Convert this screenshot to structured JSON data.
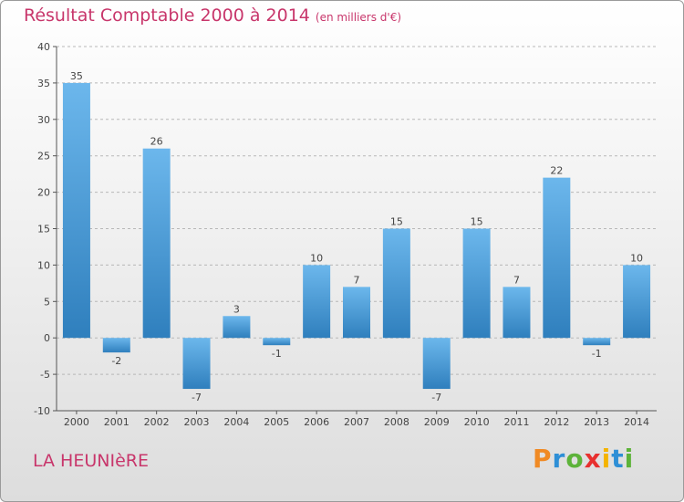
{
  "header": {
    "title": "Résultat Comptable 2000 à 2014",
    "subtitle": "(en milliers d'€)"
  },
  "footer": {
    "commune": "LA HEUNIèRE",
    "logo": {
      "letters": [
        "P",
        "r",
        "o",
        "x",
        "i",
        "t",
        "i"
      ],
      "colors": [
        "#f08a24",
        "#2e8fd6",
        "#5db33a",
        "#e8302f",
        "#f4b400",
        "#2e8fd6",
        "#5db33a"
      ]
    }
  },
  "colors": {
    "bar_top": "#6cb7ec",
    "bar_bottom": "#2f7fbd",
    "title": "#c8366b",
    "axis": "#555555",
    "grid": "#b8b8b8"
  },
  "chart_data": {
    "type": "bar",
    "categories": [
      "2000",
      "2001",
      "2002",
      "2003",
      "2004",
      "2005",
      "2006",
      "2007",
      "2008",
      "2009",
      "2010",
      "2011",
      "2012",
      "2013",
      "2014"
    ],
    "values": [
      35,
      -2,
      26,
      -7,
      3,
      -1,
      10,
      7,
      15,
      -7,
      15,
      7,
      22,
      -1,
      10
    ],
    "data_labels": [
      "35",
      "-2",
      "26",
      "-7",
      "3",
      "-1",
      "10",
      "7",
      "15",
      "-7",
      "15",
      "7",
      "22",
      "-1",
      "10"
    ],
    "yticks": [
      40,
      35,
      30,
      25,
      20,
      15,
      10,
      5,
      0,
      -5,
      -10
    ],
    "ylim": [
      -10,
      40
    ],
    "title": "Résultat Comptable 2000 à 2014",
    "subtitle": "(en milliers d'€)",
    "xlabel": "",
    "ylabel": "",
    "grid": true,
    "legend": "none"
  }
}
